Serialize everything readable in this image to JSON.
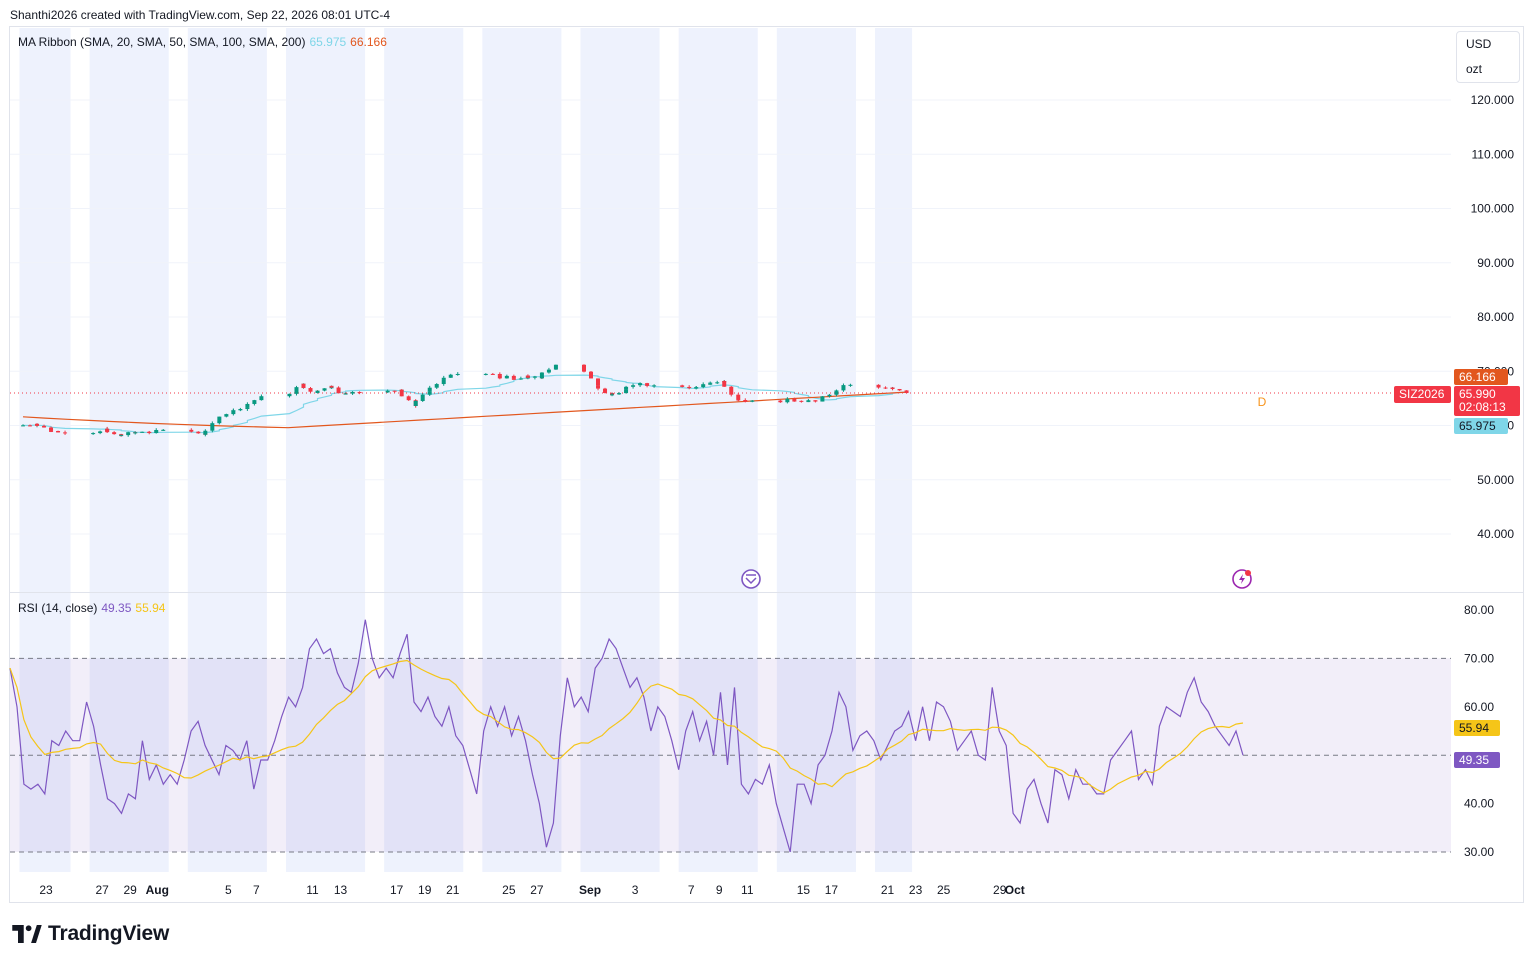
{
  "header": {
    "text": "Shanthi2026 created with TradingView.com, Sep 22, 2026 08:01 UTC-4"
  },
  "units": {
    "currency": "USD",
    "unit": "ozt"
  },
  "main_legend": {
    "name": "MA Ribbon (SMA, 20, SMA, 50, SMA, 100, SMA, 200)",
    "value1": "65.975",
    "value2": "66.166"
  },
  "rsi_legend": {
    "name": "RSI (14, close)",
    "value1": "49.35",
    "value2": "55.94"
  },
  "price_tags": {
    "ma_high": "66.166",
    "symbol": "SIZ2026",
    "last": "65.990",
    "countdown": "02:08:13",
    "ma_low": "65.975"
  },
  "rsi_tags": {
    "ma": "55.94",
    "rsi": "49.35"
  },
  "marker_label": "D",
  "brand": "TradingView",
  "colors": {
    "up": "#089981",
    "down": "#f23645",
    "ma_fast": "#7fd6e8",
    "ma_slow": "#e2571e",
    "rsi": "#7e57c2",
    "rsi_ma": "#f5c518",
    "session_band": "#eef2fd"
  },
  "icons": [
    "dividend-icon",
    "earnings-icon",
    "tradingview-logo-icon"
  ],
  "chart_data": [
    {
      "type": "candlestick",
      "title": "",
      "y_axis": {
        "ticks": [
          "120.000",
          "110.000",
          "100.000",
          "90.000",
          "80.000",
          "70.000",
          "60.000",
          "50.000",
          "40.000"
        ],
        "range": [
          38,
          127
        ]
      },
      "x_axis": {
        "ticks": [
          "23",
          "27",
          "29",
          "Aug",
          "5",
          "7",
          "11",
          "13",
          "17",
          "19",
          "21",
          "25",
          "27",
          "Sep",
          "3",
          "7",
          "9",
          "11",
          "15",
          "17",
          "21",
          "23",
          "25",
          "29",
          "Oct"
        ]
      },
      "grid": true,
      "close_anchors": [
        [
          "Jul 22",
          60.3
        ],
        [
          "Jul 23",
          59.0
        ],
        [
          "Jul 24",
          58.6
        ],
        [
          "Jul 27",
          59.4
        ],
        [
          "Jul 28",
          58.2
        ],
        [
          "Jul 29",
          58.6
        ],
        [
          "Jul 30",
          58.8
        ],
        [
          "Jul 31",
          59.2
        ],
        [
          "Aug 3",
          58.3
        ],
        [
          "Aug 4",
          61.0
        ],
        [
          "Aug 5",
          62.8
        ],
        [
          "Aug 6",
          63.3
        ],
        [
          "Aug 7",
          65.4
        ],
        [
          "Aug 10",
          67.7
        ],
        [
          "Aug 11",
          66.0
        ],
        [
          "Aug 12",
          67.3
        ],
        [
          "Aug 13",
          65.8
        ],
        [
          "Aug 14",
          66.1
        ],
        [
          "Aug 17",
          66.6
        ],
        [
          "Aug 18",
          63.6
        ],
        [
          "Aug 19",
          66.3
        ],
        [
          "Aug 20",
          68.4
        ],
        [
          "Aug 21",
          69.5
        ],
        [
          "Aug 24",
          69.2
        ],
        [
          "Aug 25",
          68.6
        ],
        [
          "Aug 26",
          69.2
        ],
        [
          "Aug 27",
          68.7
        ],
        [
          "Aug 28",
          71.2
        ],
        [
          "Aug 31",
          67.4
        ],
        [
          "Sep 1",
          65.7
        ],
        [
          "Sep 2",
          66.6
        ],
        [
          "Sep 3",
          67.7
        ],
        [
          "Sep 4",
          67.4
        ],
        [
          "Sep 7",
          67.0
        ],
        [
          "Sep 8",
          67.7
        ],
        [
          "Sep 9",
          68.2
        ],
        [
          "Sep 10",
          64.8
        ],
        [
          "Sep 11",
          64.6
        ],
        [
          "Sep 14",
          64.6
        ],
        [
          "Sep 15",
          64.5
        ],
        [
          "Sep 16",
          64.8
        ],
        [
          "Sep 17",
          66.3
        ],
        [
          "Sep 18",
          67.5
        ],
        [
          "Sep 21",
          67.0
        ],
        [
          "Sep 22",
          65.99
        ]
      ],
      "series": [
        {
          "name": "SIZ2026",
          "last": 65.99
        },
        {
          "name": "SMA 20",
          "last": 65.975
        },
        {
          "name": "SMA 200",
          "last": 66.166
        }
      ]
    },
    {
      "type": "line",
      "title": "",
      "y_axis": {
        "ticks": [
          "80.00",
          "70.00",
          "60.00",
          "40.00",
          "30.00"
        ],
        "range": [
          26,
          82
        ]
      },
      "levels": [
        70,
        50,
        30
      ],
      "series": [
        {
          "name": "RSI",
          "last": 49.35,
          "values": [
            68,
            60,
            44,
            43,
            44,
            42,
            53,
            52,
            55,
            53,
            53,
            61,
            56,
            48,
            41,
            40,
            38,
            42,
            41,
            53,
            45,
            48,
            44,
            46,
            44,
            49,
            55,
            57,
            52,
            49,
            46,
            52,
            51,
            49,
            53,
            43,
            49,
            49,
            53,
            58,
            62,
            60,
            64,
            72,
            74,
            71,
            72,
            67,
            64,
            63,
            69,
            78,
            70,
            66,
            68,
            66,
            71,
            75,
            61,
            59,
            62,
            58,
            56,
            60,
            54,
            52,
            47,
            42,
            55,
            60,
            56,
            60,
            54,
            58,
            53,
            46,
            40,
            31,
            36,
            54,
            66,
            60,
            62,
            59,
            68,
            70,
            74,
            72,
            68,
            64,
            66,
            62,
            55,
            60,
            58,
            53,
            47,
            55,
            59,
            53,
            57,
            50,
            63,
            48,
            64,
            44,
            42,
            45,
            44,
            48,
            40,
            35,
            30,
            44,
            44,
            40,
            48,
            50,
            55,
            63,
            60,
            51,
            54,
            55,
            53,
            49,
            52,
            55,
            56,
            59,
            53,
            60,
            53,
            61,
            60,
            57,
            51,
            53,
            55,
            50,
            49,
            64,
            55,
            52,
            38,
            36,
            43,
            45,
            40,
            36,
            47,
            46,
            41,
            47,
            44,
            44,
            42,
            42,
            49,
            51,
            53,
            55,
            45,
            47,
            44,
            56,
            60,
            59,
            58,
            63,
            66,
            61,
            59,
            56,
            54,
            52,
            55,
            50
          ],
          "note": "values approximate, read from the plotted line"
        },
        {
          "name": "RSI-based MA",
          "last": 55.94
        }
      ]
    }
  ]
}
